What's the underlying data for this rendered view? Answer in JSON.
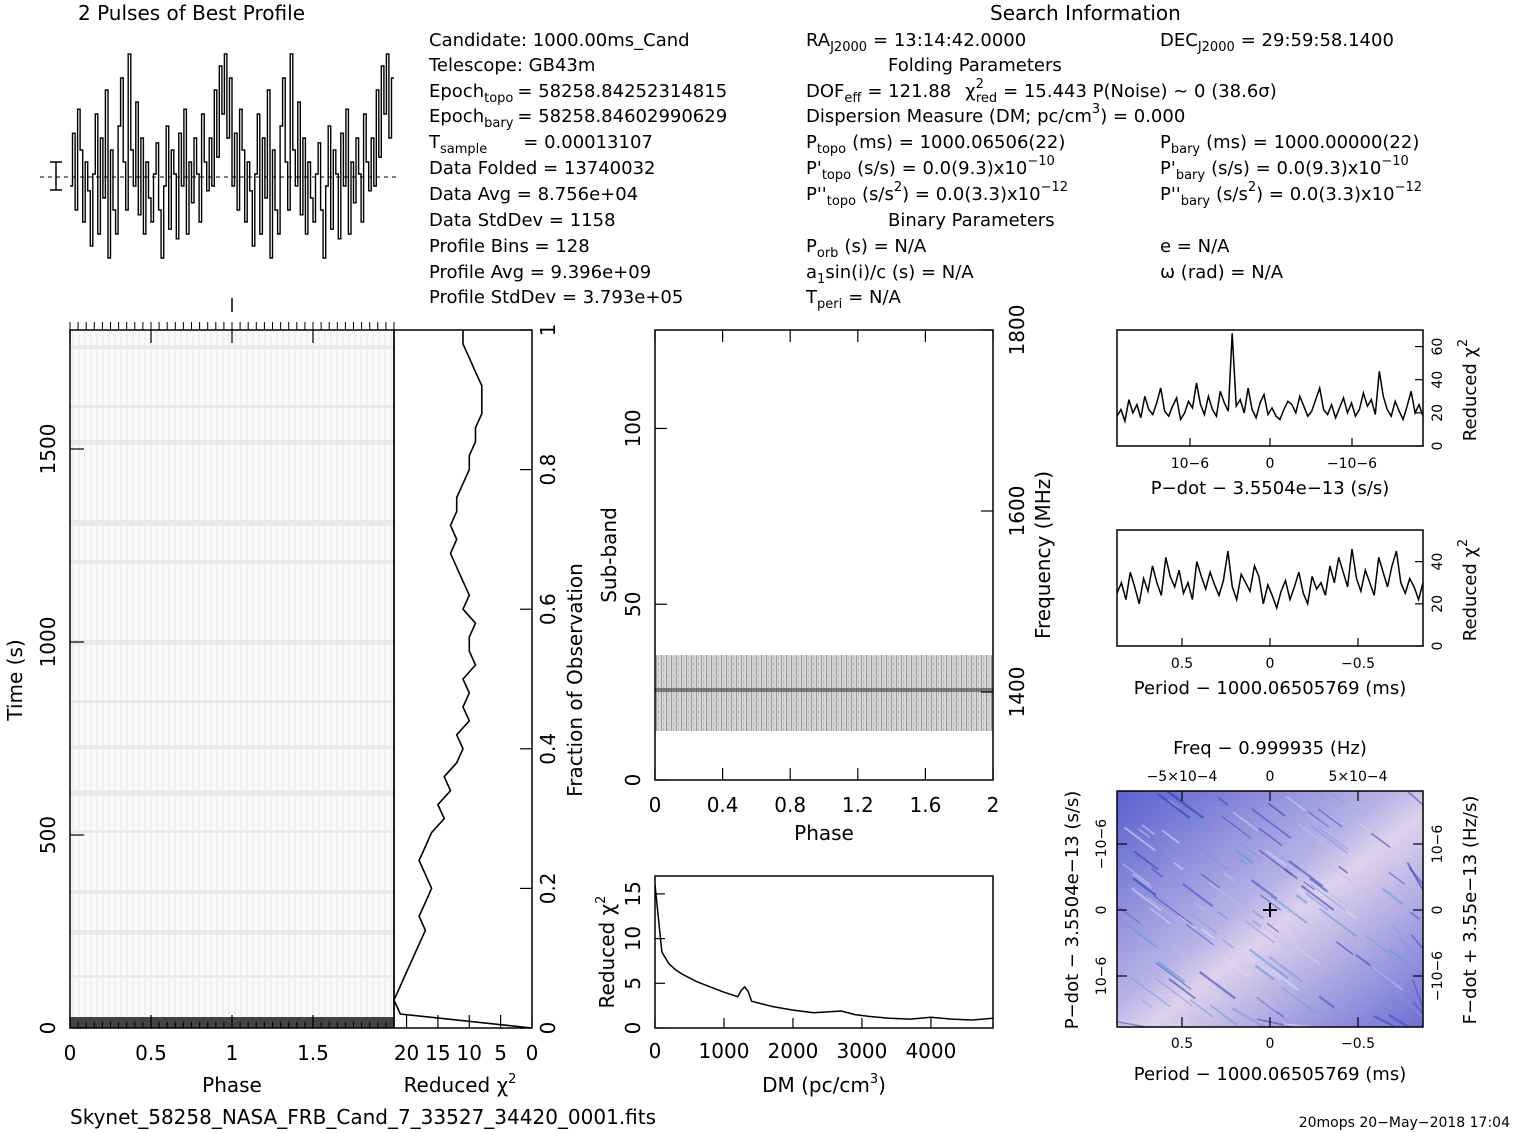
{
  "header": {
    "profile_title": "2 Pulses of Best Profile",
    "search_title": "Search Information",
    "folding_title": "Folding Parameters",
    "binary_title": "Binary Parameters"
  },
  "info": {
    "candidate": "Candidate:  1000.00ms_Cand",
    "telescope": "Telescope:  GB43m",
    "epoch_topo_label": "Epoch",
    "epoch_topo_sub": "topo",
    "epoch_topo_value": "= 58258.84252314815",
    "epoch_bary_label": "Epoch",
    "epoch_bary_sub": "bary",
    "epoch_bary_value": "= 58258.84602990629",
    "tsample_label": "T",
    "tsample_sub": "sample",
    "tsample_value": "=    0.00013107",
    "data_folded": "Data Folded      =    13740032",
    "data_avg": "Data Avg          =    8.756e+04",
    "data_stddev": "Data StdDev      =    1158",
    "profile_bins": "Profile Bins      =    128",
    "profile_avg": "Profile Avg        =    9.396e+09",
    "profile_stddev": "Profile StdDev  =    3.793e+05"
  },
  "search": {
    "ra_label": "RA",
    "ra_sub": "J2000",
    "ra_value": "= 13:14:42.0000",
    "dec_label": "DEC",
    "dec_sub": "J2000",
    "dec_value": "= 29:59:58.1400",
    "dof_label": "DOF",
    "dof_sub": "eff",
    "dof_value": "= 121.88",
    "chi_label": "χ",
    "chi_sup": "2",
    "chi_sub": "red",
    "chi_value": "= 15.443   P(Noise) ~ 0    (38.6σ)",
    "dm_text": "Dispersion Measure (DM; pc/cm",
    "dm_sup": "3",
    "dm_value": ") = 0.000",
    "ptopo": "P",
    "ptopo_sub": "topo",
    "ptopo_value": "(ms)  =   1000.06506(22)",
    "pbary": "P",
    "pbary_sub": "bary",
    "pbary_value": "(ms)  =   1000.00000(22)",
    "pdtopo": "P'",
    "pdtopo_sub": "topo",
    "pdtopo_value": "(s/s) = 0.0(9.3)x10",
    "pdtopo_exp": "−10",
    "pdbary": "P'",
    "pdbary_sub": "bary",
    "pdbary_value": "(s/s) = 0.0(9.3)x10",
    "pdbary_exp": "−10",
    "pddtopo": "P''",
    "pddtopo_sub": "topo",
    "pddtopo_value": "(s/s",
    "pddtopo_sup": "2",
    "pddtopo_value2": ") = 0.0(3.3)x10",
    "pddtopo_exp": "−12",
    "pddbary": "P''",
    "pddbary_sub": "bary",
    "pddbary_value": "(s/s",
    "pddbary_sup": "2",
    "pddbary_value2": ") = 0.0(3.3)x10",
    "pddbary_exp": "−12",
    "porb": "P",
    "porb_sub": "orb",
    "porb_value": "(s) = N/A",
    "ecc": "e = N/A",
    "a1_text": "a",
    "a1_sub": "1",
    "a1_value": "sin(i)/c (s) = N/A",
    "omega": "ω (rad) = N/A",
    "tperi": "T",
    "tperi_sub": "peri",
    "tperi_value": "= N/A"
  },
  "footer": {
    "filename": "Skynet_58258_NASA_FRB_Cand_7_33527_34420_0001.fits",
    "stamp": "20mops 20−May−2018 17:04"
  },
  "colors": {
    "ink": "#000000",
    "ppdot_base": "#6b6fd4",
    "ppdot_light": "#e4d8ee",
    "ppdot_dark": "#2b3bb8"
  },
  "chart_data": [
    {
      "id": "profile",
      "type": "line",
      "title": "2 Pulses of Best Profile",
      "x": [
        0,
        1,
        2,
        3,
        4,
        5,
        6,
        7,
        8,
        9,
        10,
        11,
        12,
        13,
        14,
        15,
        16,
        17,
        18,
        19,
        20,
        21,
        22,
        23,
        24,
        25,
        26,
        27,
        28,
        29,
        30,
        31,
        32,
        33,
        34,
        35,
        36,
        37,
        38,
        39,
        40,
        41,
        42,
        43,
        44,
        45,
        46,
        47,
        48,
        49,
        50,
        51,
        52,
        53,
        54,
        55,
        56,
        57,
        58,
        59,
        60,
        61,
        62,
        63
      ],
      "values": [
        0.4,
        0.62,
        0.3,
        0.72,
        0.55,
        0.25,
        0.5,
        0.38,
        0.15,
        0.45,
        0.7,
        0.2,
        0.6,
        0.35,
        0.8,
        0.1,
        0.55,
        0.3,
        0.2,
        0.65,
        0.85,
        0.5,
        0.3,
        0.95,
        0.55,
        0.4,
        0.75,
        0.28,
        0.6,
        0.2,
        0.5,
        0.35,
        0.25,
        0.45,
        0.58,
        0.3,
        0.1,
        0.4,
        0.65,
        0.22,
        0.55,
        0.45,
        0.18,
        0.62,
        0.4,
        0.72,
        0.2,
        0.5,
        0.33,
        0.6,
        0.45,
        0.25,
        0.7,
        0.5,
        0.38,
        0.6,
        0.4,
        0.8,
        0.52,
        0.9,
        0.7,
        0.95,
        0.6,
        0.85
      ],
      "pulses": 2
    },
    {
      "id": "time-phase",
      "type": "heatmap",
      "xlabel": "Phase",
      "ylabel": "Time (s)",
      "xticks": [
        "0",
        "0.5",
        "1",
        "1.5"
      ],
      "yticks": [
        "0",
        "500",
        "1000",
        "1500"
      ],
      "xlim": [
        0,
        2
      ],
      "ylim": [
        0,
        1800
      ]
    },
    {
      "id": "time-chi",
      "type": "line",
      "xlabel": "Reduced χ2",
      "xticks": [
        "20",
        "15",
        "10",
        "5",
        "0"
      ],
      "y2label": "Fraction of Observation",
      "y2ticks": [
        "0",
        "0.2",
        "0.4",
        "0.6",
        "0.8",
        "1"
      ],
      "frac": [
        0.0,
        0.02,
        0.04,
        0.06,
        0.08,
        0.1,
        0.12,
        0.14,
        0.16,
        0.18,
        0.2,
        0.22,
        0.24,
        0.26,
        0.28,
        0.3,
        0.32,
        0.34,
        0.36,
        0.38,
        0.4,
        0.42,
        0.44,
        0.46,
        0.48,
        0.5,
        0.52,
        0.54,
        0.56,
        0.58,
        0.6,
        0.62,
        0.64,
        0.66,
        0.68,
        0.7,
        0.72,
        0.74,
        0.76,
        0.78,
        0.8,
        0.82,
        0.84,
        0.86,
        0.88,
        0.9,
        0.92,
        0.94,
        0.96,
        0.98,
        1.0
      ],
      "chi": [
        0,
        21,
        22,
        21,
        20,
        19,
        18,
        17,
        18,
        17,
        16,
        17,
        18,
        17,
        16,
        14,
        15,
        13,
        14,
        12,
        11,
        12,
        10,
        11,
        10,
        11,
        9,
        10,
        10,
        9,
        11,
        10,
        11,
        12,
        13,
        12,
        13,
        12,
        12,
        11,
        10,
        10,
        9,
        9,
        8,
        8,
        8,
        9,
        10,
        11,
        11
      ]
    },
    {
      "id": "subband-phase",
      "type": "heatmap",
      "xlabel": "Phase",
      "ylabel": "Sub-band",
      "y2label": "Frequency (MHz)",
      "xticks": [
        "0",
        "0.4",
        "0.8",
        "1.2",
        "1.6",
        "2"
      ],
      "yticks": [
        "0",
        "50",
        "100"
      ],
      "y2ticks": [
        "1400",
        "1600",
        "1800"
      ],
      "xlim": [
        0,
        2
      ],
      "ylim": [
        0,
        128
      ],
      "active_band": [
        15,
        35
      ]
    },
    {
      "id": "dm-chi",
      "type": "line",
      "xlabel": "DM (pc/cm3)",
      "ylabel": "Reduced χ2",
      "xticks": [
        "0",
        "1000",
        "2000",
        "3000",
        "4000"
      ],
      "yticks": [
        "0",
        "5",
        "10",
        "15"
      ],
      "xlim": [
        0,
        4900
      ],
      "ylim": [
        0,
        17
      ],
      "x": [
        0,
        100,
        200,
        300,
        400,
        500,
        600,
        800,
        1000,
        1200,
        1250,
        1300,
        1350,
        1400,
        1500,
        1700,
        2000,
        2300,
        2500,
        2700,
        2900,
        3100,
        3400,
        3700,
        4000,
        4300,
        4600,
        4900
      ],
      "y": [
        16,
        8.5,
        7.2,
        6.5,
        6.0,
        5.6,
        5.2,
        4.6,
        4.0,
        3.5,
        4.2,
        4.6,
        4.1,
        3.0,
        2.8,
        2.4,
        2.0,
        1.7,
        1.8,
        1.9,
        1.5,
        1.3,
        1.1,
        1.0,
        1.2,
        1.0,
        0.9,
        1.1
      ]
    },
    {
      "id": "pdot-chi",
      "type": "line",
      "xlabel": "P−dot − 3.5504e−13 (s/s)",
      "ylabel": "Reduced χ2",
      "xticks": [
        "10−6",
        "0",
        "−10−6"
      ],
      "yticks": [
        "0",
        "20",
        "40",
        "60"
      ],
      "ylim": [
        0,
        70
      ],
      "y": [
        18,
        22,
        15,
        28,
        20,
        25,
        17,
        30,
        22,
        19,
        26,
        35,
        21,
        18,
        24,
        29,
        16,
        20,
        27,
        23,
        38,
        25,
        19,
        30,
        22,
        18,
        33,
        26,
        21,
        68,
        24,
        28,
        20,
        35,
        22,
        17,
        26,
        31,
        19,
        23,
        18,
        16,
        22,
        27,
        25,
        20,
        30,
        24,
        18,
        21,
        28,
        35,
        22,
        19,
        25,
        17,
        23,
        29,
        20,
        26,
        18,
        22,
        32,
        24,
        28,
        19,
        45,
        30,
        22,
        18,
        27,
        21,
        16,
        24,
        33,
        20,
        25,
        18
      ]
    },
    {
      "id": "period-chi",
      "type": "line",
      "xlabel": "Period − 1000.06505769 (ms)",
      "ylabel": "Reduced χ2",
      "xticks": [
        "0.5",
        "0",
        "−0.5"
      ],
      "yticks": [
        "0",
        "20",
        "40"
      ],
      "ylim": [
        0,
        55
      ],
      "y": [
        25,
        30,
        22,
        35,
        28,
        20,
        32,
        26,
        38,
        30,
        24,
        42,
        33,
        28,
        36,
        25,
        30,
        22,
        40,
        33,
        27,
        35,
        29,
        24,
        31,
        45,
        28,
        22,
        34,
        30,
        26,
        38,
        33,
        20,
        29,
        24,
        18,
        26,
        31,
        22,
        28,
        35,
        25,
        20,
        33,
        27,
        30,
        24,
        38,
        30,
        42,
        35,
        28,
        46,
        32,
        26,
        36,
        30,
        24,
        42,
        35,
        28,
        38,
        45,
        30,
        25,
        32,
        28,
        22,
        30
      ]
    },
    {
      "id": "ppdot-plane",
      "type": "heatmap",
      "title": "Freq − 0.999935 (Hz)",
      "xlabel": "Period − 1000.06505769 (ms)",
      "ylabel": "P−dot − 3.5504e−13 (s/s)",
      "y2label": "F−dot + 3.55e−13 (Hz/s)",
      "xticks": [
        "0.5",
        "0",
        "−0.5"
      ],
      "x2ticks": [
        "−5×10−4",
        "0",
        "5×10−4"
      ],
      "yticks": [
        "10−6",
        "0",
        "−10−6"
      ],
      "y2ticks": [
        "−10−6",
        "0",
        "10−6"
      ]
    }
  ]
}
